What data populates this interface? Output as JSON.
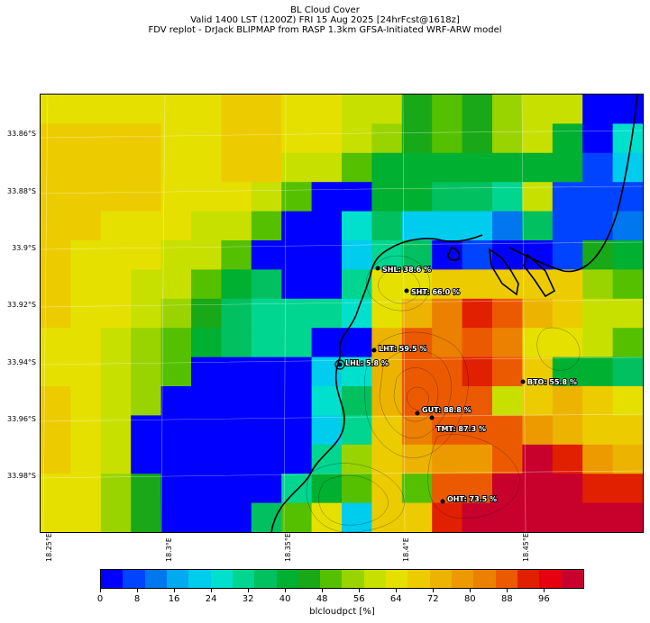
{
  "header": {
    "line1": "BL Cloud Cover",
    "line2": "Valid 1400 LST (1200Z) FRI 15 Aug 2025 [24hrFcst@1618z]",
    "line3": "FDV replot - DrJack BLIPMAP from RASP 1.3km GFSA-Initiated WRF-ARW model"
  },
  "axes": {
    "lat_labels": [
      "33.86°S",
      "33.88°S",
      "33.9°S",
      "33.92°S",
      "33.94°S",
      "33.96°S",
      "33.98°S"
    ],
    "lon_labels": [
      "18.25°E",
      "18.3°E",
      "18.35°E",
      "18.4°E",
      "18.45°E"
    ]
  },
  "grid_values": [
    [
      60,
      60,
      60,
      60,
      60,
      60,
      64,
      64,
      60,
      60,
      56,
      56,
      44,
      48,
      44,
      52,
      56,
      56,
      4,
      4
    ],
    [
      64,
      64,
      64,
      64,
      60,
      60,
      64,
      64,
      60,
      60,
      56,
      52,
      44,
      48,
      44,
      52,
      56,
      40,
      4,
      24
    ],
    [
      64,
      64,
      64,
      64,
      60,
      60,
      64,
      64,
      56,
      56,
      48,
      40,
      40,
      40,
      40,
      40,
      40,
      40,
      8,
      20
    ],
    [
      64,
      64,
      64,
      64,
      60,
      60,
      60,
      56,
      48,
      4,
      4,
      40,
      40,
      36,
      36,
      28,
      56,
      8,
      8,
      8
    ],
    [
      64,
      64,
      60,
      60,
      60,
      56,
      56,
      48,
      4,
      4,
      24,
      36,
      20,
      20,
      20,
      12,
      36,
      8,
      8,
      12
    ],
    [
      64,
      60,
      60,
      60,
      56,
      56,
      48,
      4,
      4,
      4,
      20,
      28,
      32,
      4,
      8,
      4,
      4,
      8,
      44,
      40
    ],
    [
      64,
      60,
      60,
      56,
      56,
      48,
      40,
      36,
      4,
      4,
      28,
      60,
      60,
      64,
      64,
      64,
      68,
      64,
      52,
      48
    ],
    [
      64,
      60,
      60,
      56,
      52,
      44,
      36,
      28,
      28,
      28,
      24,
      60,
      72,
      80,
      88,
      84,
      72,
      64,
      56,
      56
    ],
    [
      60,
      60,
      56,
      52,
      48,
      40,
      32,
      28,
      28,
      4,
      4,
      72,
      84,
      80,
      84,
      80,
      60,
      60,
      56,
      48
    ],
    [
      60,
      60,
      56,
      52,
      48,
      4,
      4,
      4,
      4,
      20,
      24,
      72,
      84,
      84,
      88,
      84,
      64,
      40,
      40,
      36
    ],
    [
      64,
      60,
      56,
      52,
      4,
      4,
      4,
      4,
      4,
      24,
      32,
      72,
      84,
      84,
      84,
      56,
      68,
      72,
      64,
      60
    ],
    [
      64,
      60,
      56,
      4,
      4,
      4,
      4,
      4,
      4,
      20,
      28,
      68,
      80,
      84,
      84,
      84,
      76,
      72,
      64,
      64
    ],
    [
      64,
      60,
      56,
      4,
      4,
      4,
      4,
      4,
      4,
      28,
      52,
      68,
      72,
      76,
      76,
      84,
      96,
      88,
      76,
      72
    ],
    [
      60,
      60,
      52,
      44,
      4,
      4,
      4,
      4,
      28,
      40,
      48,
      64,
      48,
      84,
      84,
      96,
      96,
      96,
      88,
      88
    ],
    [
      60,
      60,
      52,
      44,
      4,
      4,
      4,
      32,
      48,
      60,
      20,
      64,
      68,
      88,
      96,
      96,
      96,
      96,
      96,
      96
    ]
  ],
  "sites": [
    {
      "label": "SHL: 38.6 %"
    },
    {
      "label": "SHT: 66.0 %"
    },
    {
      "label": "LHT: 59.5 %"
    },
    {
      "label": "LHL: 5.8 %"
    },
    {
      "label": "BTO: 55.8 %"
    },
    {
      "label": "GUT: 88.8 %"
    },
    {
      "label": "TMT: 87.3 %"
    },
    {
      "label": "OHT: 73.5 %"
    }
  ],
  "colorbar": {
    "colors": [
      "#0000ff",
      "#0044ff",
      "#0077ee",
      "#00aaee",
      "#00ccee",
      "#00e0cc",
      "#00d68f",
      "#00c060",
      "#00b030",
      "#18a818",
      "#55c000",
      "#99d400",
      "#c8e000",
      "#e6e000",
      "#eccc00",
      "#ecb400",
      "#ec9a00",
      "#ec8000",
      "#ec5a00",
      "#e02000",
      "#e60010",
      "#c8002c"
    ],
    "ticks": [
      "0",
      "8",
      "16",
      "24",
      "32",
      "40",
      "48",
      "56",
      "64",
      "72",
      "80",
      "88",
      "96"
    ],
    "label": "blcloudpct [%]"
  }
}
